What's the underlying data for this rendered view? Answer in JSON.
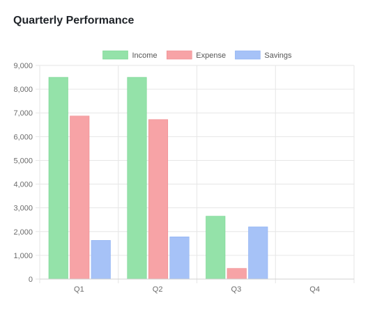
{
  "title": "Quarterly Performance",
  "chart_data": {
    "type": "bar",
    "categories": [
      "Q1",
      "Q2",
      "Q3",
      "Q4"
    ],
    "series": [
      {
        "name": "Income",
        "values": [
          8500,
          8500,
          2650,
          0
        ],
        "color": "#94e2a9",
        "border": "#77d590"
      },
      {
        "name": "Expense",
        "values": [
          6870,
          6720,
          450,
          0
        ],
        "color": "#f7a3a6",
        "border": "#ef8c90"
      },
      {
        "name": "Savings",
        "values": [
          1630,
          1780,
          2200,
          0
        ],
        "color": "#a6c2f7",
        "border": "#8cb0f2"
      }
    ],
    "ylim": [
      0,
      9000
    ],
    "yticks": [
      0,
      1000,
      2000,
      3000,
      4000,
      5000,
      6000,
      7000,
      8000,
      9000
    ],
    "ytick_labels": [
      "0",
      "1,000",
      "2,000",
      "3,000",
      "4,000",
      "5,000",
      "6,000",
      "7,000",
      "8,000",
      "9,000"
    ],
    "grid": true,
    "legend_position": "top-center",
    "xlabel": "",
    "ylabel": ""
  }
}
